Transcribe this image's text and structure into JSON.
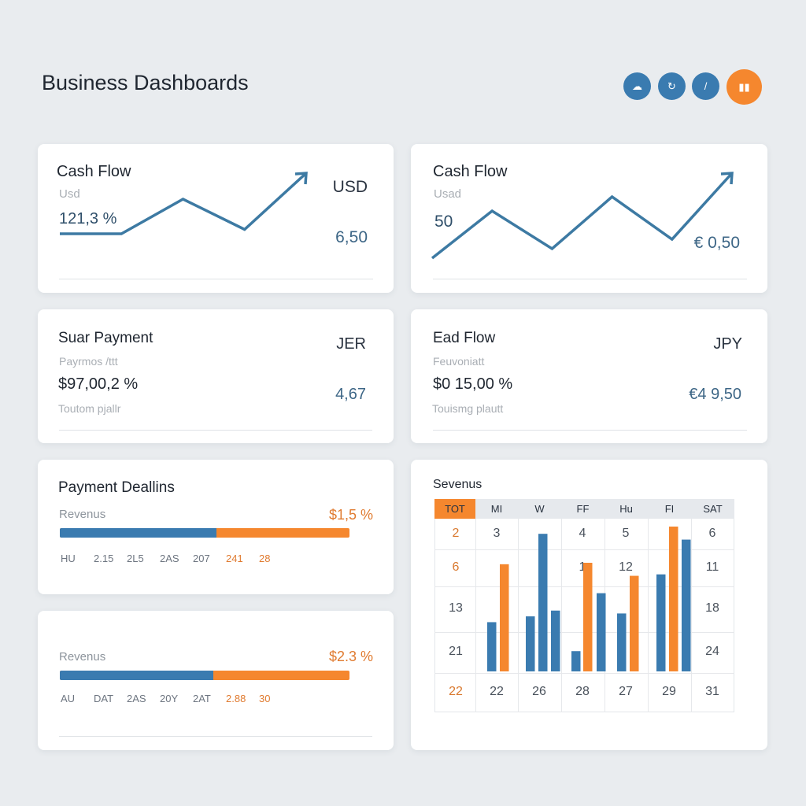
{
  "header": {
    "title": "Business Dashboards",
    "actions": [
      {
        "icon": "cloud-icon",
        "glyph": "☁",
        "color": "#3a7bb0"
      },
      {
        "icon": "run-icon",
        "glyph": "↻",
        "color": "#3a7bb0"
      },
      {
        "icon": "chevron-right-icon",
        "glyph": "/",
        "color": "#3a7bb0"
      },
      {
        "icon": "grid-icon",
        "glyph": "▮▮",
        "color": "#f5872e"
      }
    ]
  },
  "colors": {
    "blue": "#3a7bb0",
    "orange": "#f5872e",
    "line": "#3d7aa3"
  },
  "cards": {
    "cash1": {
      "title": "Cash Flow",
      "sub": "Usd",
      "value": "121,3 %",
      "currency": "USD",
      "amount": "6,50"
    },
    "cash2": {
      "title": "Cash Flow",
      "sub": "Usad",
      "value": "50",
      "amount": "€ 0,50"
    },
    "payment": {
      "title": "Suar Payment",
      "sub": "Payrmos /ttt",
      "value": "$97,00,2 %",
      "note": "Toutom pjallr",
      "currency": "JER",
      "amount": "4,67"
    },
    "eaflow": {
      "title": "Ead Flow",
      "sub": "Feuvoniatt",
      "value": "$0 15,00 %",
      "note": "Touismg plautt",
      "currency": "JPY",
      "amount": "€4 9,50"
    },
    "deal1": {
      "title": "Payment Deallins",
      "label": "Revenus",
      "amount": "$1,5 %",
      "progress": 0.54,
      "ticks": [
        "HU",
        "2.15",
        "2L5",
        "2AS",
        "207",
        "241",
        "28"
      ]
    },
    "deal2": {
      "label": "Revenus",
      "amount": "$2.3 %",
      "progress": 0.53,
      "ticks": [
        "AU",
        "DAT",
        "2AS",
        "20Y",
        "2AT",
        "2.88",
        "30"
      ]
    },
    "calendar": {
      "title": "Sevenus",
      "days": [
        "TOT",
        "MI",
        "W",
        "FF",
        "Hu",
        "FI",
        "SAT"
      ],
      "rows": [
        [
          "2",
          "3",
          "",
          "4",
          "5",
          "",
          "6"
        ],
        [
          "6",
          "",
          "",
          "1",
          "12",
          "",
          "11"
        ],
        [
          "13",
          "",
          "",
          "",
          "",
          "",
          "18"
        ],
        [
          "21",
          "",
          "",
          "",
          "",
          "",
          "24"
        ],
        [
          "22",
          "22",
          "26",
          "28",
          "27",
          "29",
          "31"
        ]
      ]
    }
  },
  "chart_data": [
    {
      "type": "line",
      "points": [
        2,
        2,
        6,
        2.5,
        9
      ]
    },
    {
      "type": "line",
      "points": [
        1,
        6,
        2,
        7.5,
        3,
        10
      ]
    },
    {
      "type": "bar",
      "series": [
        {
          "color": "blue",
          "values": [
            34,
            38,
            95,
            42,
            14,
            54,
            40,
            67,
            91
          ]
        },
        {
          "color": "orange",
          "values": [
            74,
            75,
            66,
            100
          ]
        }
      ]
    }
  ]
}
